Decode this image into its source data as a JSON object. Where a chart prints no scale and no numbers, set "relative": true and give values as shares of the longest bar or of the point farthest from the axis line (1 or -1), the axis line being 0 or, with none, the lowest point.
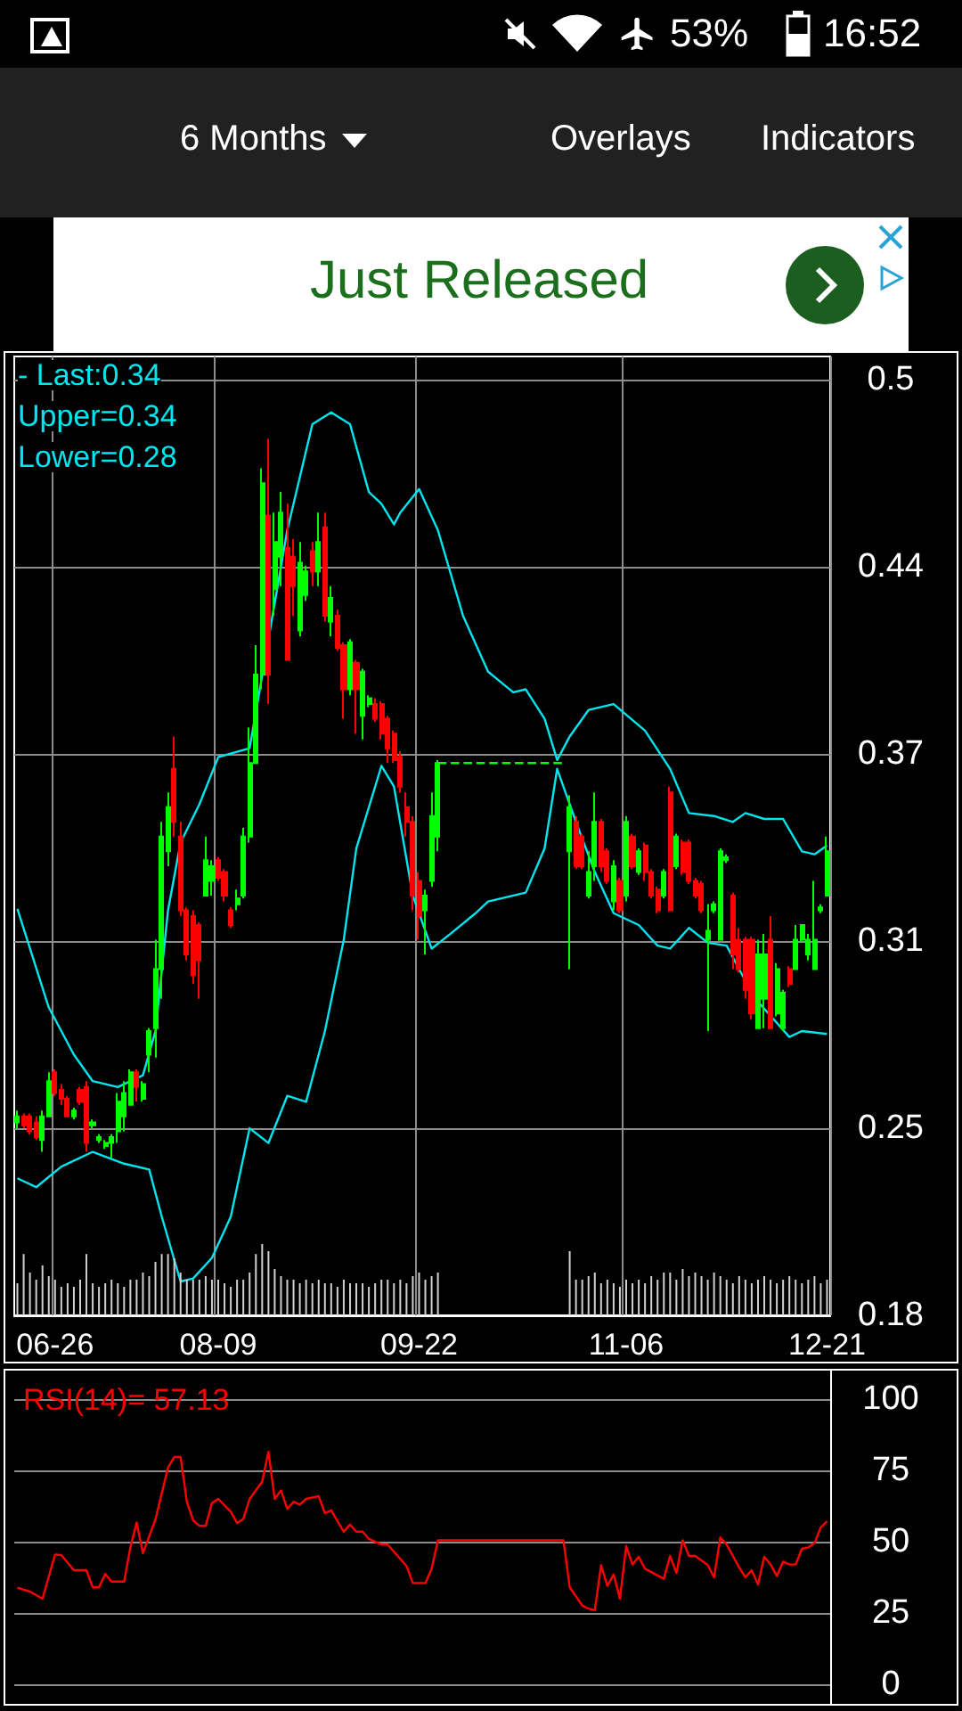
{
  "chart_data": [
    {
      "type": "other",
      "annotations": [
        "53%",
        "16:52",
        "6 Months",
        "Overlays",
        "Indicators",
        "Just Released"
      ]
    },
    {
      "type": "candlestick",
      "annotations": [
        "- Last:0.34",
        "Upper=0.34",
        "Lower=0.28"
      ],
      "categories": [
        null,
        null,
        null,
        null,
        null,
        null,
        "06-26",
        null,
        null,
        null,
        null,
        null,
        null,
        null,
        null,
        null,
        null,
        null,
        null,
        null,
        null,
        null,
        null,
        null,
        null,
        null,
        null,
        null,
        null,
        null,
        null,
        null,
        "08-09",
        null,
        null,
        null,
        null,
        null,
        null,
        null,
        null,
        null,
        null,
        null,
        null,
        null,
        null,
        null,
        null,
        null,
        null,
        null,
        null,
        null,
        null,
        null,
        null,
        null,
        null,
        null,
        null,
        null,
        null,
        null,
        "09-22",
        null,
        null,
        null,
        null,
        null,
        null,
        null,
        null,
        null,
        null,
        null,
        null,
        null,
        null,
        null,
        null,
        null,
        null,
        null,
        null,
        null,
        null,
        null,
        null,
        null,
        null,
        null,
        null,
        null,
        null,
        null,
        null,
        "11-06",
        null,
        null,
        null,
        null,
        null,
        null,
        null,
        null,
        null,
        null,
        null,
        null,
        null,
        null,
        null,
        null,
        null,
        null,
        null,
        null,
        null,
        null,
        null,
        null,
        null,
        null,
        null,
        null,
        null,
        null,
        null,
        "12-21"
      ],
      "ohlc": [
        [
          0.248,
          0.252,
          0.246,
          0.25
        ],
        [
          0.25,
          0.251,
          0.246,
          0.247
        ],
        [
          0.25,
          0.251,
          0.244,
          0.245
        ],
        [
          0.248,
          0.25,
          0.242,
          0.243
        ],
        [
          0.242,
          0.252,
          0.238,
          0.25
        ],
        [
          0.25,
          0.265,
          0.25,
          0.262
        ],
        [
          0.265,
          0.266,
          0.257,
          0.258
        ],
        [
          0.259,
          0.261,
          0.254,
          0.256
        ],
        [
          0.256,
          0.257,
          0.25,
          0.25
        ],
        [
          0.25,
          0.253,
          0.249,
          0.252
        ],
        [
          0.259,
          0.26,
          0.254,
          0.255
        ],
        [
          0.26,
          0.262,
          0.238,
          0.241
        ],
        [
          0.247,
          0.249,
          0.246,
          0.248
        ],
        [
          0.242,
          0.244,
          0.241,
          0.243
        ],
        [
          0.24,
          0.242,
          0.239,
          0.241
        ],
        [
          0.241,
          0.244,
          0.236,
          0.243
        ],
        [
          0.245,
          0.258,
          0.241,
          0.255
        ],
        [
          0.25,
          0.262,
          0.245,
          0.258
        ],
        [
          0.254,
          0.266,
          0.254,
          0.265
        ],
        [
          0.265,
          0.266,
          0.255,
          0.26
        ],
        [
          0.256,
          0.262,
          0.255,
          0.261
        ],
        [
          0.271,
          0.28,
          0.265,
          0.279
        ],
        [
          0.28,
          0.31,
          0.27,
          0.3
        ],
        [
          0.3,
          0.35,
          0.29,
          0.345
        ],
        [
          0.34,
          0.36,
          0.335,
          0.355
        ],
        [
          0.368,
          0.379,
          0.345,
          0.35
        ],
        [
          0.345,
          0.35,
          0.318,
          0.32
        ],
        [
          0.32,
          0.321,
          0.303,
          0.305
        ],
        [
          0.318,
          0.32,
          0.295,
          0.298
        ],
        [
          0.315,
          0.316,
          0.29,
          0.303
        ],
        [
          0.325,
          0.345,
          0.325,
          0.337
        ],
        [
          0.33,
          0.337,
          0.325,
          0.335
        ],
        [
          0.337,
          0.338,
          0.33,
          0.331
        ],
        [
          0.333,
          0.334,
          0.323,
          0.325
        ],
        [
          0.32,
          0.321,
          0.314,
          0.315
        ],
        [
          0.322,
          0.327,
          0.32,
          0.324
        ],
        [
          0.325,
          0.348,
          0.324,
          0.345
        ],
        [
          0.345,
          0.382,
          0.343,
          0.37
        ],
        [
          0.37,
          0.41,
          0.37,
          0.4
        ],
        [
          0.4,
          0.47,
          0.395,
          0.465
        ],
        [
          0.454,
          0.48,
          0.39,
          0.4
        ],
        [
          0.429,
          0.455,
          0.42,
          0.445
        ],
        [
          0.44,
          0.462,
          0.43,
          0.455
        ],
        [
          0.443,
          0.458,
          0.405,
          0.405
        ],
        [
          0.44,
          0.446,
          0.42,
          0.43
        ],
        [
          0.415,
          0.445,
          0.413,
          0.438
        ],
        [
          0.427,
          0.437,
          0.425,
          0.435
        ],
        [
          0.442,
          0.445,
          0.43,
          0.435
        ],
        [
          0.435,
          0.455,
          0.43,
          0.445
        ],
        [
          0.45,
          0.455,
          0.418,
          0.42
        ],
        [
          0.418,
          0.43,
          0.413,
          0.426
        ],
        [
          0.42,
          0.422,
          0.408,
          0.409
        ],
        [
          0.41,
          0.411,
          0.385,
          0.395
        ],
        [
          0.395,
          0.412,
          0.393,
          0.411
        ],
        [
          0.404,
          0.405,
          0.38,
          0.395
        ],
        [
          0.386,
          0.402,
          0.378,
          0.401
        ],
        [
          0.39,
          0.393,
          0.389,
          0.392
        ],
        [
          0.39,
          0.392,
          0.384,
          0.385
        ],
        [
          0.39,
          0.391,
          0.378,
          0.38
        ],
        [
          0.385,
          0.386,
          0.37,
          0.375
        ],
        [
          0.38,
          0.381,
          0.37,
          0.371
        ],
        [
          0.372,
          0.374,
          0.36,
          0.362
        ],
        [
          0.355,
          0.36,
          0.345,
          0.35
        ],
        [
          0.35,
          0.352,
          0.32,
          0.325
        ],
        [
          0.33,
          0.333,
          0.31,
          0.318
        ],
        [
          0.32,
          0.327,
          0.305,
          0.325
        ],
        [
          0.33,
          0.36,
          0.328,
          0.352
        ],
        [
          0.345,
          0.371,
          0.34,
          0.37
        ],
        null,
        null,
        null,
        null,
        null,
        null,
        null,
        null,
        null,
        null,
        null,
        null,
        null,
        null,
        null,
        null,
        null,
        null,
        null,
        null,
        [
          0.34,
          0.359,
          0.3,
          0.355
        ],
        [
          0.35,
          0.352,
          0.334,
          0.335
        ],
        [
          0.345,
          0.346,
          0.334,
          0.335
        ],
        [
          0.325,
          0.34,
          0.324,
          0.333
        ],
        [
          0.335,
          0.36,
          0.33,
          0.35
        ],
        [
          0.35,
          0.351,
          0.333,
          0.335
        ],
        [
          0.34,
          0.341,
          0.329,
          0.33
        ],
        [
          0.323,
          0.337,
          0.32,
          0.335
        ],
        [
          0.33,
          0.331,
          0.319,
          0.32
        ],
        [
          0.325,
          0.352,
          0.323,
          0.35
        ],
        [
          0.345,
          0.346,
          0.334,
          0.335
        ],
        [
          0.333,
          0.341,
          0.332,
          0.34
        ],
        [
          0.342,
          0.343,
          0.33,
          0.333
        ],
        [
          0.333,
          0.334,
          0.324,
          0.325
        ],
        [
          0.327,
          0.328,
          0.319,
          0.32
        ],
        [
          0.325,
          0.334,
          0.324,
          0.333
        ],
        [
          0.36,
          0.362,
          0.32,
          0.32
        ],
        [
          0.335,
          0.346,
          0.334,
          0.345
        ],
        [
          0.343,
          0.344,
          0.332,
          0.333
        ],
        [
          0.343,
          0.344,
          0.329,
          0.33
        ],
        [
          0.33,
          0.331,
          0.324,
          0.325
        ],
        [
          0.329,
          0.33,
          0.319,
          0.32
        ],
        [
          0.31,
          0.322,
          0.279,
          0.313
        ],
        [
          0.32,
          0.323,
          0.319,
          0.322
        ],
        [
          0.31,
          0.341,
          0.31,
          0.34
        ],
        [
          0.337,
          0.339,
          0.336,
          0.338
        ],
        [
          0.325,
          0.326,
          0.3,
          0.305
        ],
        [
          0.31,
          0.314,
          0.299,
          0.3
        ],
        [
          0.31,
          0.311,
          0.29,
          0.293
        ],
        [
          0.31,
          0.311,
          0.283,
          0.285
        ],
        [
          0.28,
          0.31,
          0.28,
          0.305
        ],
        [
          0.29,
          0.312,
          0.28,
          0.305
        ],
        [
          0.31,
          0.318,
          0.28,
          0.28
        ],
        [
          0.285,
          0.302,
          0.284,
          0.3
        ],
        [
          0.28,
          0.293,
          0.279,
          0.292
        ],
        [
          0.3,
          0.301,
          0.294,
          0.295
        ],
        [
          0.3,
          0.315,
          0.3,
          0.31
        ],
        [
          0.31,
          0.315,
          0.309,
          0.315
        ],
        [
          0.305,
          0.312,
          0.303,
          0.31
        ],
        [
          0.3,
          0.33,
          0.3,
          0.31
        ],
        [
          0.32,
          0.322,
          0.319,
          0.321
        ],
        [
          0.325,
          0.345,
          0.325,
          0.34
        ]
      ],
      "series": [
        {
          "type": "line",
          "color": "#00e5ee",
          "values": [
            0.3205,
            null,
            null,
            null,
            null,
            0.287,
            null,
            null,
            null,
            0.271,
            null,
            null,
            0.262,
            null,
            null,
            null,
            0.26,
            null,
            null,
            null,
            0.264,
            null,
            0.279,
            null,
            0.32,
            null,
            0.343,
            null,
            null,
            0.356,
            null,
            null,
            0.372,
            null,
            null,
            null,
            null,
            0.375,
            null,
            null,
            null,
            null,
            null,
            0.449,
            null,
            null,
            null,
            0.485,
            null,
            null,
            0.489,
            null,
            null,
            0.485,
            null,
            null,
            0.462,
            null,
            0.458,
            null,
            0.451,
            0.455,
            null,
            null,
            0.463,
            null,
            null,
            0.449,
            null,
            null,
            null,
            0.42,
            null,
            null,
            null,
            0.401,
            null,
            null,
            null,
            0.394,
            null,
            0.395,
            null,
            null,
            0.385,
            null,
            0.371,
            null,
            0.379,
            null,
            null,
            0.388,
            null,
            null,
            null,
            0.39,
            null,
            null,
            null,
            null,
            0.381,
            null,
            null,
            null,
            0.368,
            null,
            null,
            0.353,
            null,
            null,
            null,
            0.352,
            null,
            null,
            0.35,
            null,
            0.353,
            null,
            null,
            0.351,
            null,
            null,
            0.351,
            null,
            null,
            0.34,
            null,
            0.339,
            null,
            0.342
          ]
        },
        {
          "type": "line",
          "color": "#00e5ee",
          "values": [
            0.229,
            null,
            null,
            0.226,
            null,
            null,
            null,
            0.233,
            null,
            null,
            null,
            null,
            0.238,
            null,
            null,
            null,
            null,
            0.234,
            null,
            null,
            null,
            0.232,
            null,
            0.216,
            null,
            null,
            0.194,
            null,
            0.195,
            null,
            null,
            0.202,
            null,
            null,
            0.216,
            null,
            null,
            0.246,
            null,
            null,
            0.241,
            null,
            null,
            0.257,
            null,
            null,
            0.255,
            null,
            null,
            0.279,
            null,
            null,
            0.31,
            null,
            0.341,
            null,
            null,
            null,
            0.369,
            null,
            0.362,
            null,
            null,
            0.325,
            null,
            null,
            0.307,
            null,
            null,
            0.312,
            null,
            null,
            null,
            0.319,
            null,
            0.323,
            null,
            null,
            null,
            null,
            null,
            0.326,
            null,
            null,
            0.341,
            null,
            0.368,
            null,
            null,
            0.35,
            null,
            null,
            0.333,
            null,
            null,
            0.319,
            null,
            null,
            null,
            0.315,
            null,
            null,
            0.308,
            null,
            0.307,
            null,
            null,
            0.314,
            null,
            null,
            0.309,
            null,
            null,
            0.308,
            null,
            null,
            0.296,
            null,
            0.289,
            null,
            null,
            null,
            null,
            0.277,
            null,
            0.279,
            null,
            null,
            null,
            0.278
          ]
        },
        {
          "type": "line",
          "color": "#00ff00",
          "line_style": "dashed",
          "values": [
            null,
            null,
            null,
            null,
            null,
            null,
            null,
            null,
            null,
            null,
            null,
            null,
            null,
            null,
            null,
            null,
            null,
            null,
            null,
            null,
            null,
            null,
            null,
            null,
            null,
            null,
            null,
            null,
            null,
            null,
            null,
            null,
            null,
            null,
            null,
            null,
            null,
            null,
            null,
            null,
            null,
            null,
            null,
            null,
            null,
            null,
            null,
            null,
            null,
            null,
            null,
            null,
            null,
            null,
            null,
            null,
            null,
            null,
            null,
            null,
            null,
            null,
            null,
            null,
            null,
            null,
            null,
            0.37,
            null,
            null,
            null,
            null,
            null,
            null,
            null,
            null,
            null,
            null,
            null,
            null,
            null,
            null,
            null,
            null,
            null,
            null,
            null,
            0.37,
            null,
            null,
            null,
            null,
            null,
            null,
            null,
            null,
            null,
            null,
            null,
            null,
            null,
            null,
            null,
            null,
            null,
            null,
            null,
            null,
            null,
            null,
            null,
            null,
            null,
            null,
            null,
            null,
            null,
            null,
            null,
            null,
            null,
            null,
            null,
            null,
            null,
            null,
            null,
            null,
            null,
            null
          ]
        }
      ],
      "ylim": [
        0.1825,
        0.508
      ],
      "yticks": [
        {
          "value": 0.1825,
          "label": "0.18"
        },
        {
          "value": 0.246,
          "label": "0.25"
        },
        {
          "value": 0.3095,
          "label": "0.31"
        },
        {
          "value": 0.373,
          "label": "0.37"
        },
        {
          "value": 0.4365,
          "label": "0.44"
        },
        0.5
      ],
      "grid": true
    },
    {
      "type": "bar",
      "relative": true,
      "color": "#d0d0d0",
      "tick_labels": false,
      "categories": [
        null,
        null,
        null,
        null,
        null,
        null,
        null,
        null,
        null,
        null,
        null,
        null,
        null,
        null,
        null,
        null,
        null,
        null,
        null,
        null,
        null,
        null,
        null,
        null,
        null,
        null,
        null,
        null,
        null,
        null,
        null,
        null,
        null,
        null,
        null,
        null,
        null,
        null,
        null,
        null,
        null,
        null,
        null,
        null,
        null,
        null,
        null,
        null,
        null,
        null,
        null,
        null,
        null,
        null,
        null,
        null,
        null,
        null,
        null,
        null,
        null,
        null,
        null,
        null,
        null,
        null,
        null,
        null,
        null,
        null,
        null,
        null,
        null,
        null,
        null,
        null,
        null,
        null,
        null,
        null,
        null,
        null,
        null,
        null,
        null,
        null,
        null,
        null,
        null,
        null,
        null,
        null,
        null,
        null,
        null,
        null,
        null,
        null,
        null,
        null,
        null,
        null,
        null,
        null,
        null,
        null,
        null,
        null,
        null,
        null,
        null,
        null,
        null,
        null,
        null,
        null,
        null,
        null,
        null,
        null,
        null,
        null,
        null,
        null,
        null,
        null,
        null,
        null,
        null,
        null
      ],
      "values": [
        0.45,
        0.86,
        0.6,
        0.5,
        0.7,
        0.55,
        0.5,
        0.4,
        0.45,
        0.4,
        0.5,
        0.86,
        0.45,
        0.4,
        0.45,
        0.5,
        0.45,
        0.4,
        0.5,
        0.5,
        0.6,
        0.55,
        0.75,
        0.86,
        0.86,
        0.8,
        0.6,
        0.5,
        0.5,
        0.5,
        0.55,
        0.5,
        0.5,
        0.45,
        0.4,
        0.5,
        0.5,
        0.6,
        0.86,
        1,
        0.9,
        0.65,
        0.55,
        0.5,
        0.5,
        0.45,
        0.5,
        0.45,
        0.5,
        0.45,
        0.45,
        0.4,
        0.5,
        0.45,
        0.45,
        0.45,
        0.4,
        0.45,
        0.5,
        0.5,
        0.45,
        0.5,
        0.45,
        0.55,
        0.6,
        0.5,
        0.55,
        0.6,
        null,
        null,
        null,
        null,
        null,
        null,
        null,
        null,
        null,
        null,
        null,
        null,
        null,
        null,
        null,
        null,
        null,
        null,
        null,
        null,
        0.9,
        0.5,
        0.5,
        0.55,
        0.6,
        0.45,
        0.5,
        0.45,
        0.4,
        0.5,
        0.45,
        0.5,
        0.45,
        0.55,
        0.5,
        0.6,
        0.6,
        0.5,
        0.65,
        0.55,
        0.6,
        0.55,
        0.5,
        0.6,
        0.55,
        0.5,
        0.45,
        0.55,
        0.5,
        0.45,
        0.5,
        0.55,
        0.5,
        0.45,
        0.5,
        0.55,
        0.5,
        0.45,
        0.5,
        0.55,
        0.45,
        0.5
      ]
    },
    {
      "type": "line",
      "title": "RSI(14)= 57.13",
      "tick_labels": "y",
      "grid": "y",
      "categories": [
        null,
        null,
        null,
        null,
        null,
        null,
        null,
        null,
        null,
        null,
        null,
        null,
        null,
        null,
        null,
        null,
        null,
        null,
        null,
        null,
        null,
        null,
        null,
        null,
        null,
        null,
        null,
        null,
        null,
        null,
        null,
        null,
        null,
        null,
        null,
        null,
        null,
        null,
        null,
        null,
        null,
        null,
        null,
        null,
        null,
        null,
        null,
        null,
        null,
        null,
        null,
        null,
        null,
        null,
        null,
        null,
        null,
        null,
        null,
        null,
        null,
        null,
        null,
        null,
        null,
        null,
        null,
        null,
        null,
        null,
        null,
        null,
        null,
        null,
        null,
        null,
        null,
        null,
        null,
        null,
        null,
        null,
        null,
        null,
        null,
        null,
        null,
        null,
        null,
        null,
        null,
        null,
        null,
        null,
        null,
        null,
        null,
        null,
        null,
        null,
        null,
        null,
        null,
        null,
        null,
        null,
        null,
        null,
        null,
        null,
        null,
        null,
        null,
        null,
        null,
        null,
        null,
        null,
        null,
        null,
        null,
        null,
        null,
        null,
        null,
        null,
        null,
        null,
        null,
        null
      ],
      "series": [
        {
          "color": "#ff0000",
          "values": [
            33.9,
            null,
            32.5,
            null,
            30,
            null,
            45.5,
            45.3,
            null,
            40,
            null,
            40,
            34,
            34,
            38.7,
            36,
            null,
            36,
            48,
            56.7,
            46,
            null,
            57.8,
            null,
            76,
            79.7,
            79.7,
            64,
            57.5,
            55.6,
            55.6,
            63.5,
            65,
            null,
            60.5,
            56.5,
            58,
            65,
            null,
            71,
            81.5,
            65,
            68,
            61.5,
            64,
            63,
            65,
            null,
            66,
            60,
            61,
            null,
            53.5,
            56,
            53.5,
            53.5,
            51,
            null,
            49,
            49,
            null,
            null,
            41.5,
            35.5,
            null,
            35.5,
            40.5,
            50.5,
            null,
            null,
            null,
            null,
            null,
            null,
            null,
            null,
            null,
            null,
            null,
            null,
            null,
            null,
            null,
            null,
            null,
            null,
            null,
            50.5,
            34,
            null,
            27.6,
            26.5,
            26,
            41.8,
            34.5,
            38.5,
            30,
            48.5,
            42,
            44.7,
            40.5,
            null,
            null,
            37,
            45,
            39,
            50.5,
            45,
            45,
            null,
            41.8,
            37.5,
            51.5,
            49,
            null,
            41,
            37.5,
            40,
            35,
            44.7,
            42,
            38,
            43,
            42,
            42,
            47.5,
            48,
            49.5,
            55,
            57.13
          ]
        }
      ],
      "ylim": [
        0,
        100
      ],
      "yticks": [
        0,
        25,
        50,
        75,
        100
      ]
    }
  ]
}
